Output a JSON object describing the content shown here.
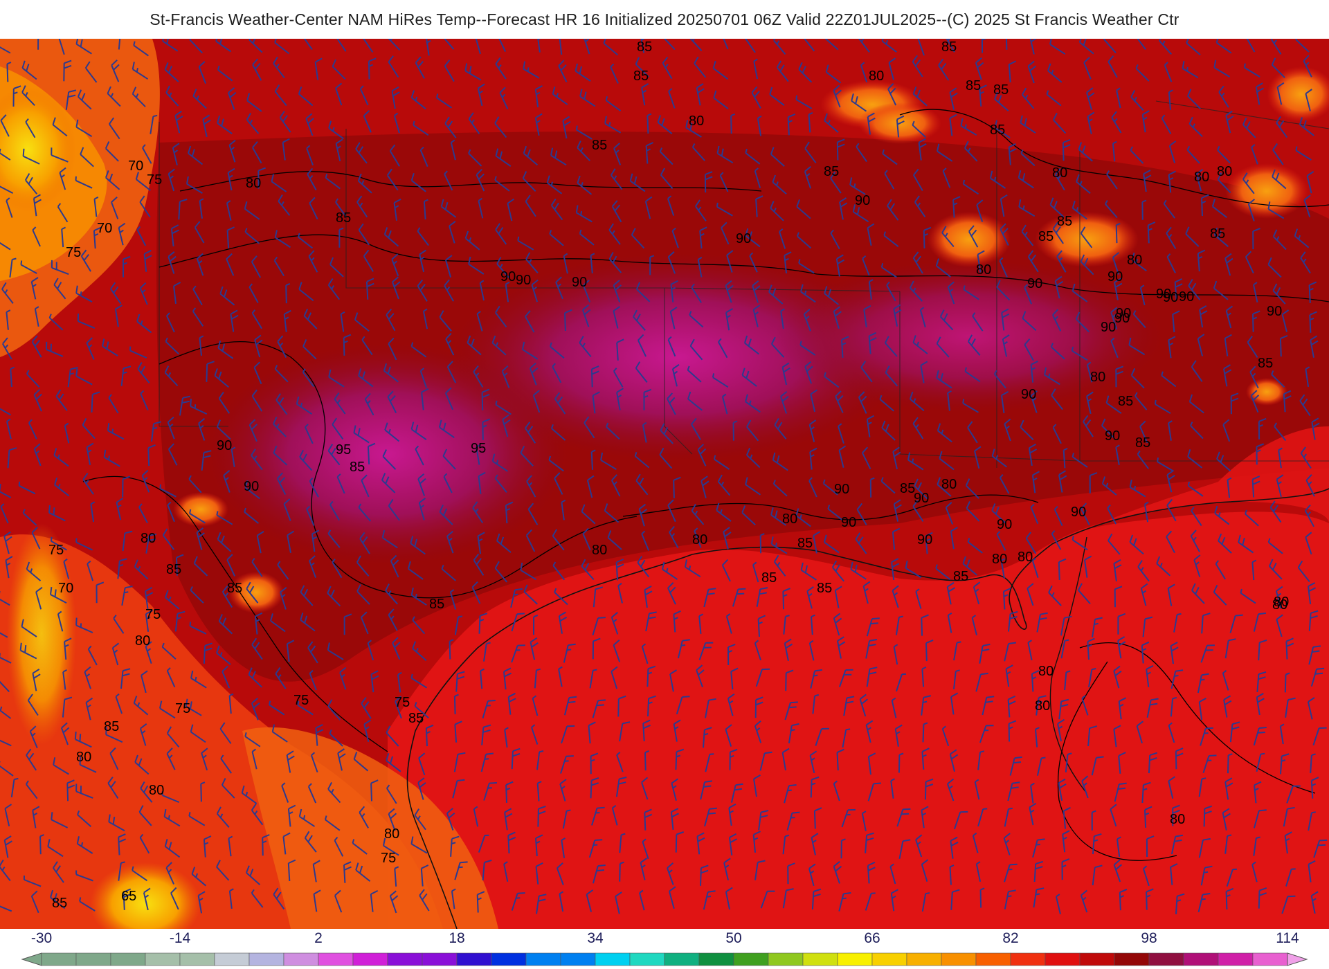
{
  "header": {
    "title": "St-Francis Weather-Center NAM HiRes Temp--Forecast HR 16 Initialized 20250701 06Z Valid 22Z01JUL2025--(C) 2025 St Francis Weather Ctr"
  },
  "map": {
    "field": "temperature",
    "barb_color": "#2b3a8f",
    "contour_color": "#000000",
    "contour_labels": [
      "85",
      "85",
      "85",
      "80",
      "85",
      "85",
      "80",
      "85",
      "85",
      "85",
      "80",
      "75",
      "70",
      "70",
      "75",
      "80",
      "85",
      "90",
      "90",
      "80",
      "90",
      "85",
      "85",
      "90",
      "80",
      "80",
      "80",
      "85",
      "90",
      "90",
      "90",
      "85",
      "90",
      "90",
      "95",
      "95",
      "90",
      "90",
      "90",
      "85",
      "85",
      "85",
      "90",
      "80",
      "75",
      "75",
      "85",
      "80",
      "85",
      "80",
      "75",
      "75",
      "70",
      "80",
      "80",
      "80",
      "65",
      "85",
      "75",
      "80",
      "90",
      "90",
      "90",
      "90",
      "85",
      "90",
      "90",
      "85",
      "80",
      "85",
      "90",
      "85",
      "80",
      "80",
      "80",
      "80",
      "75",
      "80",
      "85",
      "90",
      "85",
      "90",
      "80",
      "80",
      "80",
      "90",
      "90",
      "80",
      "85",
      "85"
    ]
  },
  "colorbar": {
    "ticks": [
      "-30",
      "-14",
      "2",
      "18",
      "34",
      "50",
      "66",
      "82",
      "98",
      "114"
    ],
    "min": -30,
    "max": 114,
    "step": 4,
    "stops": [
      {
        "v": -30,
        "c": "#7fa88a"
      },
      {
        "v": -22,
        "c": "#a5bfa9"
      },
      {
        "v": -14,
        "c": "#c5ccd6"
      },
      {
        "v": -8,
        "c": "#b4b4e0"
      },
      {
        "v": -4,
        "c": "#cf8ee0"
      },
      {
        "v": 0,
        "c": "#e050e0"
      },
      {
        "v": 2,
        "c": "#d020d8"
      },
      {
        "v": 8,
        "c": "#8a10d8"
      },
      {
        "v": 14,
        "c": "#3010d0"
      },
      {
        "v": 18,
        "c": "#0030e0"
      },
      {
        "v": 24,
        "c": "#0080f0"
      },
      {
        "v": 30,
        "c": "#00d0f0"
      },
      {
        "v": 34,
        "c": "#20d8c0"
      },
      {
        "v": 38,
        "c": "#10b080"
      },
      {
        "v": 42,
        "c": "#109040"
      },
      {
        "v": 46,
        "c": "#40a020"
      },
      {
        "v": 50,
        "c": "#90c820"
      },
      {
        "v": 54,
        "c": "#d0e010"
      },
      {
        "v": 58,
        "c": "#f8f000"
      },
      {
        "v": 62,
        "c": "#f8d000"
      },
      {
        "v": 66,
        "c": "#f8b000"
      },
      {
        "v": 70,
        "c": "#f89000"
      },
      {
        "v": 74,
        "c": "#f86000"
      },
      {
        "v": 78,
        "c": "#f03010"
      },
      {
        "v": 82,
        "c": "#e01010"
      },
      {
        "v": 86,
        "c": "#c00a0a"
      },
      {
        "v": 90,
        "c": "#940808"
      },
      {
        "v": 94,
        "c": "#901040"
      },
      {
        "v": 98,
        "c": "#b01078"
      },
      {
        "v": 102,
        "c": "#d020a8"
      },
      {
        "v": 106,
        "c": "#e860d0"
      },
      {
        "v": 110,
        "c": "#f0a0e8"
      },
      {
        "v": 114,
        "c": "#f8d8f8"
      }
    ]
  }
}
